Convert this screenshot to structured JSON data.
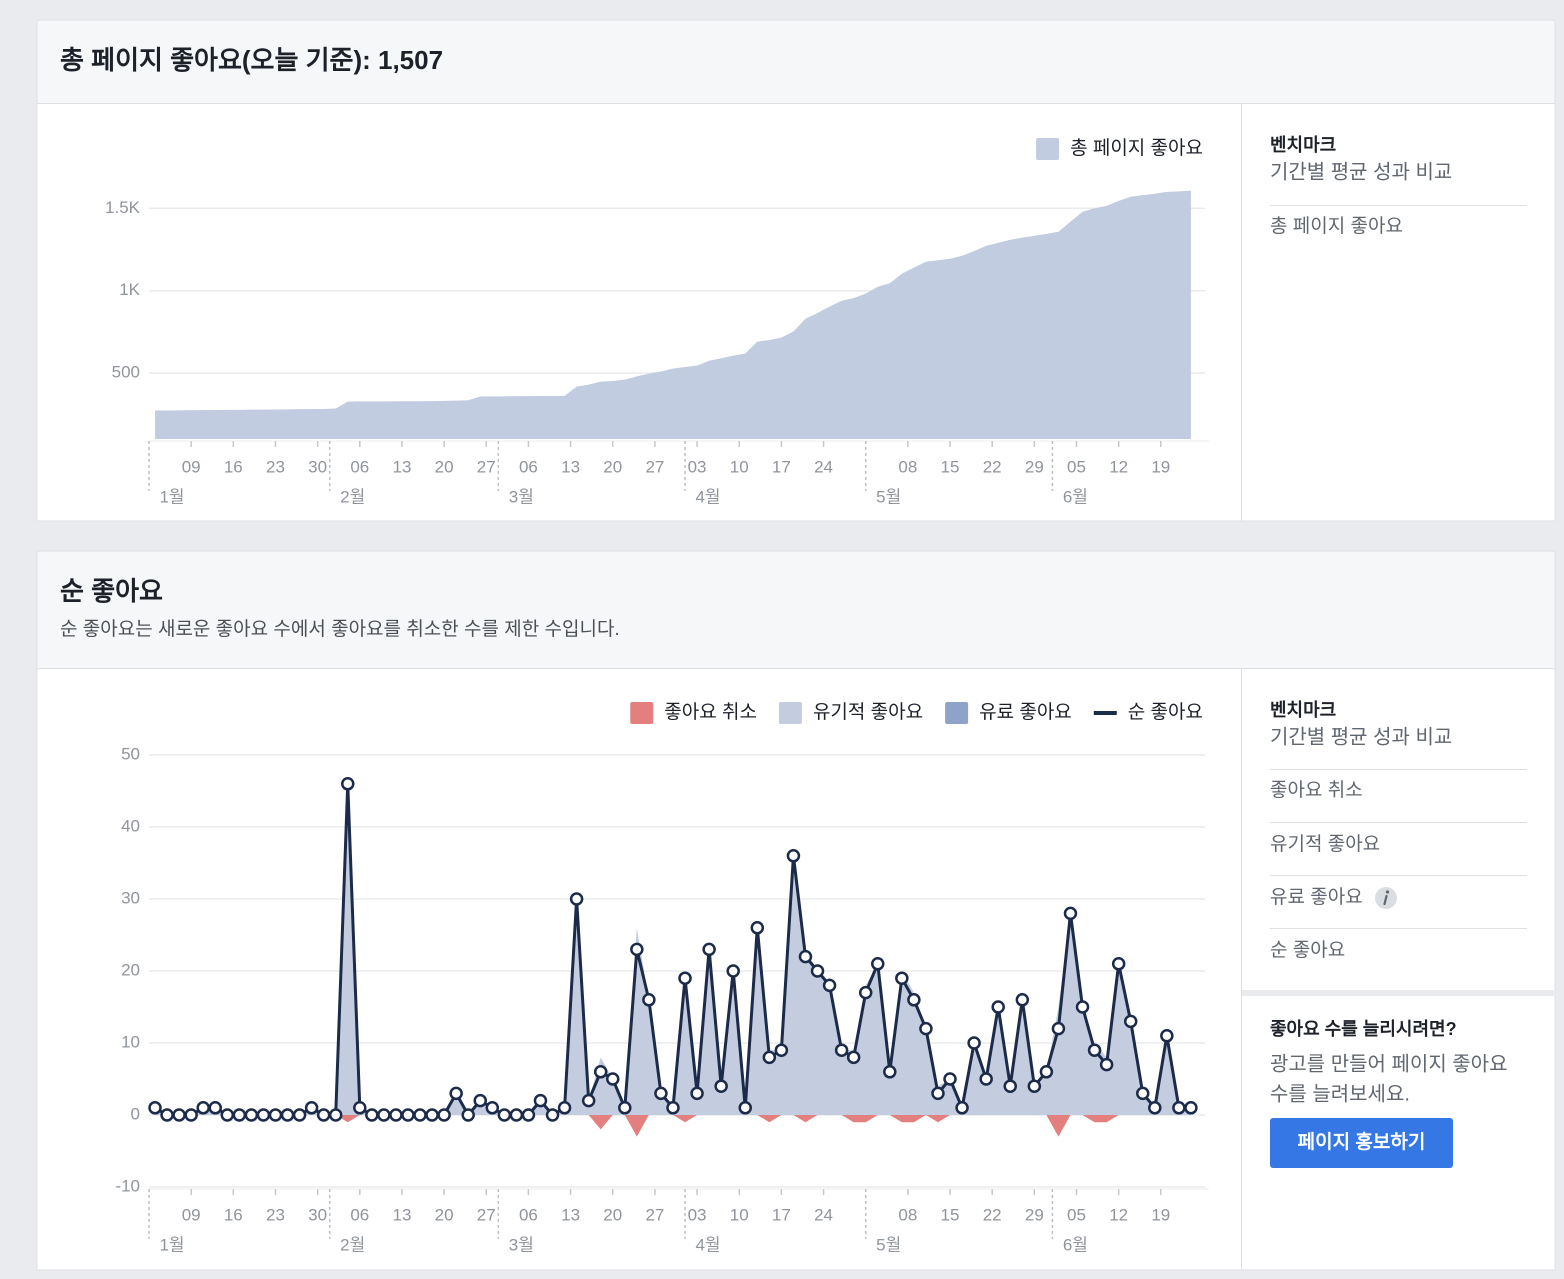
{
  "panels": [
    {
      "title": "총 페이지 좋아요(오늘 기준): 1,507"
    },
    {
      "title": "순 좋아요",
      "subtitle": "순 좋아요는 새로운 좋아요 수에서 좋아요를 취소한 수를 제한 수입니다."
    }
  ],
  "sidebars": [
    {
      "heading": "벤치마크",
      "subheading": "기간별 평균 성과 비교",
      "items": [
        "총 페이지 좋아요"
      ]
    },
    {
      "heading": "벤치마크",
      "subheading": "기간별 평균 성과 비교",
      "items": [
        "좋아요 취소",
        "유기적 좋아요",
        "유료 좋아요",
        "순 좋아요"
      ],
      "promo": {
        "title": "좋아요 수를 늘리시려면?",
        "text": [
          "광고를 만들어 페이지 좋아요",
          "수를 늘려보세요."
        ],
        "button": "페이지 홍보하기"
      }
    }
  ],
  "chart_data": [
    {
      "type": "area",
      "x": [
        3,
        5,
        7,
        9,
        11,
        13,
        15,
        17,
        19,
        21,
        23,
        25,
        27,
        29,
        31,
        33,
        35,
        37,
        39,
        41,
        43,
        45,
        47,
        49,
        51,
        53,
        55,
        57,
        59,
        61,
        63,
        65,
        67,
        69,
        71,
        73,
        75,
        77,
        79,
        81,
        83,
        85,
        87,
        89,
        91,
        93,
        95,
        97,
        99,
        101,
        103,
        105,
        107,
        109,
        111,
        113,
        115,
        117,
        119,
        121,
        123,
        125,
        127,
        129,
        131,
        133,
        135,
        137,
        139,
        141,
        143,
        145,
        147,
        149,
        151,
        153,
        155,
        157,
        159,
        161,
        163,
        165,
        167,
        169,
        171,
        173,
        175
      ],
      "series": [
        {
          "name": "총 페이지 좋아요",
          "color": "#c2cce0",
          "style": "area",
          "values": [
            173,
            173,
            174,
            175,
            175,
            176,
            177,
            177,
            178,
            178,
            179,
            180,
            181,
            181,
            182,
            185,
            227,
            228,
            228,
            228,
            229,
            229,
            229,
            230,
            231,
            233,
            235,
            258,
            259,
            259,
            260,
            260,
            261,
            261,
            262,
            318,
            330,
            348,
            352,
            360,
            380,
            397,
            410,
            427,
            437,
            445,
            475,
            490,
            506,
            518,
            591,
            600,
            615,
            652,
            730,
            765,
            803,
            839,
            855,
            882,
            924,
            945,
            1003,
            1040,
            1076,
            1085,
            1094,
            1112,
            1140,
            1173,
            1190,
            1209,
            1222,
            1233,
            1245,
            1258,
            1318,
            1379,
            1400,
            1415,
            1445,
            1470,
            1480,
            1488,
            1500,
            1503,
            1507
          ]
        }
      ],
      "xlim": [
        2,
        178
      ],
      "xticks": [
        {
          "value": 9,
          "label": "09"
        },
        16,
        23,
        30,
        {
          "value": 37,
          "label": "06"
        },
        {
          "value": 44,
          "label": "13"
        },
        {
          "value": 51,
          "label": "20"
        },
        {
          "value": 58,
          "label": "27"
        },
        {
          "value": 65,
          "label": "06"
        },
        {
          "value": 72,
          "label": "13"
        },
        {
          "value": 79,
          "label": "20"
        },
        {
          "value": 86,
          "label": "27"
        },
        {
          "value": 93,
          "label": "03"
        },
        {
          "value": 100,
          "label": "10"
        },
        {
          "value": 107,
          "label": "17"
        },
        {
          "value": 114,
          "label": "24"
        },
        {
          "value": 128,
          "label": "08"
        },
        {
          "value": 135,
          "label": "15"
        },
        {
          "value": 142,
          "label": "22"
        },
        {
          "value": 149,
          "label": "29"
        },
        {
          "value": 156,
          "label": "05"
        },
        {
          "value": 163,
          "label": "12"
        },
        {
          "value": 170,
          "label": "19"
        }
      ],
      "month_ticks": [
        {
          "value": 2,
          "label": "1월"
        },
        {
          "value": 32,
          "label": "2월"
        },
        {
          "value": 60,
          "label": "3월"
        },
        {
          "value": 91,
          "label": "4월"
        },
        {
          "value": 121,
          "label": "5월"
        },
        {
          "value": 152,
          "label": "6월"
        }
      ],
      "ylim": [
        100,
        1520
      ],
      "yticks": [
        500,
        {
          "value": 1000,
          "label": "1K"
        },
        {
          "value": 1500,
          "label": "1.5K"
        }
      ],
      "grid": true
    },
    {
      "type": "area",
      "x": [
        3,
        5,
        7,
        9,
        11,
        13,
        15,
        17,
        19,
        21,
        23,
        25,
        27,
        29,
        31,
        33,
        35,
        37,
        39,
        41,
        43,
        45,
        47,
        49,
        51,
        53,
        55,
        57,
        59,
        61,
        63,
        65,
        67,
        69,
        71,
        73,
        75,
        77,
        79,
        81,
        83,
        85,
        87,
        89,
        91,
        93,
        95,
        97,
        99,
        101,
        103,
        105,
        107,
        109,
        111,
        113,
        115,
        117,
        119,
        121,
        123,
        125,
        127,
        129,
        131,
        133,
        135,
        137,
        139,
        141,
        143,
        145,
        147,
        149,
        151,
        153,
        155,
        157,
        159,
        161,
        163,
        165,
        167,
        169,
        171,
        173,
        175
      ],
      "series": [
        {
          "name": "좋아요 취소",
          "color": "#e37f7f",
          "style": "area",
          "values": [
            0,
            0,
            0,
            0,
            0,
            0,
            0,
            0,
            0,
            0,
            0,
            0,
            0,
            0,
            0,
            0,
            -1,
            0,
            0,
            0,
            0,
            0,
            0,
            0,
            0,
            0,
            0,
            0,
            0,
            0,
            0,
            0,
            0,
            0,
            0,
            0,
            0,
            -2,
            0,
            0,
            -3,
            0,
            0,
            0,
            -1,
            0,
            0,
            0,
            0,
            0,
            0,
            -1,
            0,
            0,
            -1,
            0,
            0,
            0,
            -1,
            -1,
            0,
            0,
            -1,
            -1,
            0,
            -1,
            0,
            0,
            0,
            0,
            0,
            0,
            0,
            0,
            0,
            -3,
            0,
            0,
            -1,
            -1,
            0,
            0,
            0,
            0,
            0,
            0,
            0
          ]
        },
        {
          "name": "유기적 좋아요",
          "color": "#c4cde0",
          "style": "area",
          "values": [
            1,
            0,
            0,
            0,
            1,
            1,
            0,
            0,
            0,
            0,
            0,
            0,
            0,
            1,
            0,
            0,
            47,
            1,
            0,
            0,
            0,
            0,
            0,
            0,
            0,
            3,
            0,
            2,
            1,
            0,
            0,
            0,
            2,
            0,
            1,
            30,
            2,
            8,
            5,
            1,
            26,
            16,
            3,
            1,
            20,
            3,
            23,
            4,
            20,
            1,
            26,
            9,
            9,
            36,
            23,
            20,
            18,
            9,
            9,
            18,
            21,
            6,
            20,
            17,
            12,
            4,
            5,
            1,
            10,
            5,
            15,
            4,
            16,
            4,
            6,
            15,
            28,
            15,
            10,
            8,
            21,
            13,
            3,
            1,
            11,
            1,
            1
          ]
        },
        {
          "name": "유료 좋아요",
          "color": "#8fa2c8",
          "style": "area",
          "values": [
            0,
            0,
            0,
            0,
            0,
            0,
            0,
            0,
            0,
            0,
            0,
            0,
            0,
            0,
            0,
            0,
            0,
            0,
            0,
            0,
            0,
            0,
            0,
            0,
            0,
            0,
            0,
            0,
            0,
            0,
            0,
            0,
            0,
            0,
            0,
            0,
            0,
            0,
            0,
            0,
            0,
            0,
            0,
            0,
            0,
            0,
            0,
            0,
            0,
            0,
            0,
            0,
            0,
            0,
            0,
            0,
            0,
            0,
            0,
            0,
            0,
            0,
            0,
            0,
            0,
            0,
            0,
            0,
            0,
            0,
            0,
            0,
            0,
            0,
            0,
            0,
            0,
            0,
            0,
            0,
            0,
            0,
            0,
            0,
            0,
            0,
            0
          ]
        },
        {
          "name": "순 좋아요",
          "color": "#1d2b4a",
          "style": "line",
          "values": [
            1,
            0,
            0,
            0,
            1,
            1,
            0,
            0,
            0,
            0,
            0,
            0,
            0,
            1,
            0,
            0,
            46,
            1,
            0,
            0,
            0,
            0,
            0,
            0,
            0,
            3,
            0,
            2,
            1,
            0,
            0,
            0,
            2,
            0,
            1,
            30,
            2,
            6,
            5,
            1,
            23,
            16,
            3,
            1,
            19,
            3,
            23,
            4,
            20,
            1,
            26,
            8,
            9,
            36,
            22,
            20,
            18,
            9,
            8,
            17,
            21,
            6,
            19,
            16,
            12,
            3,
            5,
            1,
            10,
            5,
            15,
            4,
            16,
            4,
            6,
            12,
            28,
            15,
            9,
            7,
            21,
            13,
            3,
            1,
            11,
            1,
            1
          ]
        }
      ],
      "xlim": [
        2,
        178
      ],
      "xticks": [
        {
          "value": 9,
          "label": "09"
        },
        16,
        23,
        30,
        {
          "value": 37,
          "label": "06"
        },
        {
          "value": 44,
          "label": "13"
        },
        {
          "value": 51,
          "label": "20"
        },
        {
          "value": 58,
          "label": "27"
        },
        {
          "value": 65,
          "label": "06"
        },
        {
          "value": 72,
          "label": "13"
        },
        {
          "value": 79,
          "label": "20"
        },
        {
          "value": 86,
          "label": "27"
        },
        {
          "value": 93,
          "label": "03"
        },
        {
          "value": 100,
          "label": "10"
        },
        {
          "value": 107,
          "label": "17"
        },
        {
          "value": 114,
          "label": "24"
        },
        {
          "value": 128,
          "label": "08"
        },
        {
          "value": 135,
          "label": "15"
        },
        {
          "value": 142,
          "label": "22"
        },
        {
          "value": 149,
          "label": "29"
        },
        {
          "value": 156,
          "label": "05"
        },
        {
          "value": 163,
          "label": "12"
        },
        {
          "value": 170,
          "label": "19"
        }
      ],
      "month_ticks": [
        {
          "value": 2,
          "label": "1월"
        },
        {
          "value": 32,
          "label": "2월"
        },
        {
          "value": 60,
          "label": "3월"
        },
        {
          "value": 91,
          "label": "4월"
        },
        {
          "value": 121,
          "label": "5월"
        },
        {
          "value": 152,
          "label": "6월"
        }
      ],
      "ylim": [
        -10,
        50
      ],
      "yticks": [
        -10,
        0,
        10,
        20,
        30,
        40,
        50
      ],
      "grid": true
    }
  ]
}
